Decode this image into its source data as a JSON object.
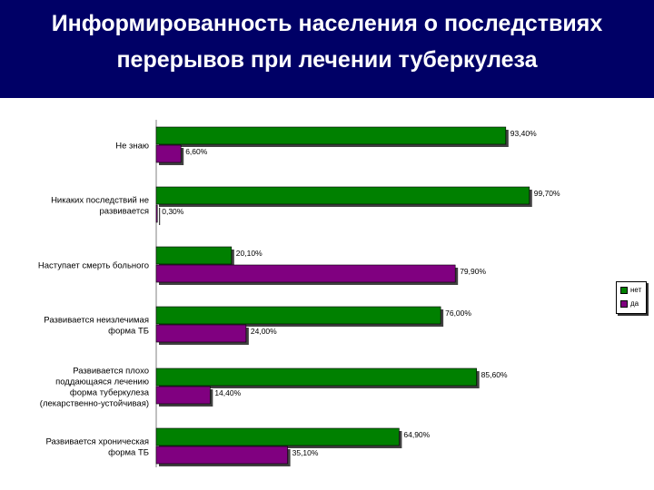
{
  "title_lines": [
    "Информированность населения о последствиях",
    "перерывов при лечении туберкулеза"
  ],
  "legend": [
    {
      "label": "нет",
      "color": "#008000"
    },
    {
      "label": "да",
      "color": "#800080"
    }
  ],
  "chart_data": {
    "type": "bar",
    "orientation": "horizontal",
    "categories": [
      [
        "Не знаю"
      ],
      [
        "Никаких последствий не",
        "развивается"
      ],
      [
        "Наступает смерть больного"
      ],
      [
        "Развивается неизлечимая",
        "форма ТБ"
      ],
      [
        "Развивается плохо",
        "поддающаяся лечению",
        "форма туберкулеза",
        "(лекарственно-устойчивая)"
      ],
      [
        "Развивается хроническая",
        "форма ТБ"
      ]
    ],
    "series": [
      {
        "name": "нет",
        "color": "#008000",
        "values": [
          93.4,
          99.7,
          20.1,
          76.0,
          85.6,
          64.9
        ],
        "labels": [
          "93,40%",
          "99,70%",
          "20,10%",
          "76,00%",
          "85,60%",
          "64,90%"
        ]
      },
      {
        "name": "да",
        "color": "#800080",
        "values": [
          6.6,
          0.3,
          79.9,
          24.0,
          14.4,
          35.1
        ],
        "labels": [
          "6,60%",
          "0,30%",
          "79,90%",
          "24,00%",
          "14,40%",
          "35,10%"
        ]
      }
    ],
    "xlim": [
      0,
      100
    ],
    "grid": false,
    "legend_position": "right"
  }
}
